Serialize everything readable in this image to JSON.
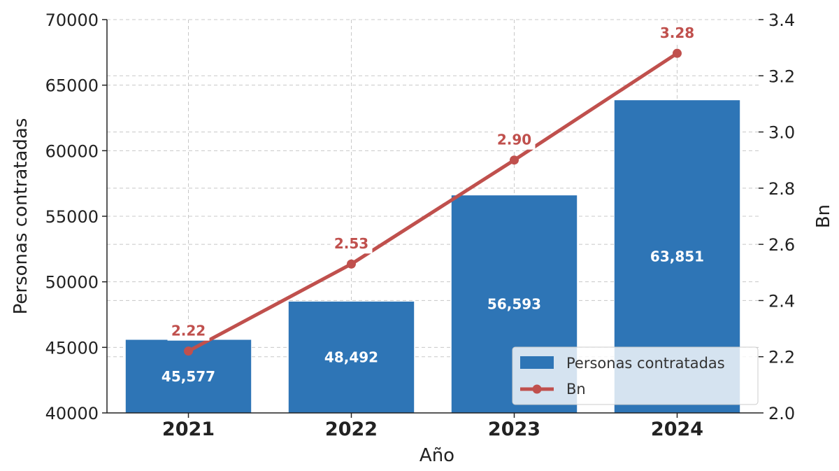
{
  "chart_data": {
    "type": "bar",
    "categories": [
      "2021",
      "2022",
      "2023",
      "2024"
    ],
    "xlabel": "Año",
    "ylabel": "Personas contratadas",
    "y2label": "Bn",
    "ylim": [
      40000,
      70000
    ],
    "y2lim": [
      2.0,
      3.4
    ],
    "yticks": [
      "40000",
      "45000",
      "50000",
      "55000",
      "60000",
      "65000",
      "70000"
    ],
    "y2ticks": [
      "2.0",
      "2.2",
      "2.4",
      "2.6",
      "2.8",
      "3.0",
      "3.2",
      "3.4"
    ],
    "grid": true,
    "legend_position": "bottom-right",
    "series": [
      {
        "name": "Personas contratadas",
        "type": "bar",
        "axis": "left",
        "color": "#2e75b6",
        "values": [
          45577,
          48492,
          56593,
          63851
        ],
        "labels": [
          "45,577",
          "48,492",
          "56,593",
          "63,851"
        ]
      },
      {
        "name": "Bn",
        "type": "line",
        "axis": "right",
        "color": "#c0504d",
        "values": [
          2.22,
          2.53,
          2.9,
          3.28
        ],
        "labels": [
          "2.22",
          "2.53",
          "2.90",
          "3.28"
        ]
      }
    ]
  }
}
